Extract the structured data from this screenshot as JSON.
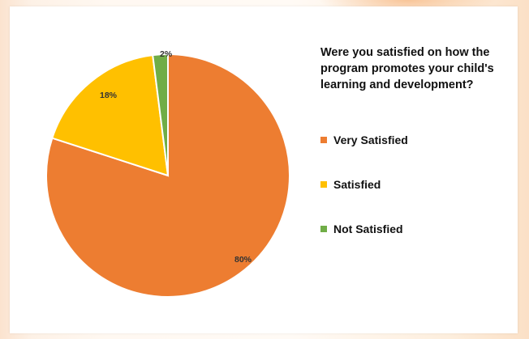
{
  "chart_data": {
    "type": "pie",
    "title": "Were you satisfied on how the program promotes your child's learning and development?",
    "legend_position": "right",
    "slices": [
      {
        "label": "Very Satisfied",
        "value": 80,
        "display": "80%",
        "color": "#ed7d31"
      },
      {
        "label": "Satisfied",
        "value": 18,
        "display": "18%",
        "color": "#ffc000"
      },
      {
        "label": "Not Satisfied",
        "value": 2,
        "display": "2%",
        "color": "#70ad47"
      }
    ]
  }
}
